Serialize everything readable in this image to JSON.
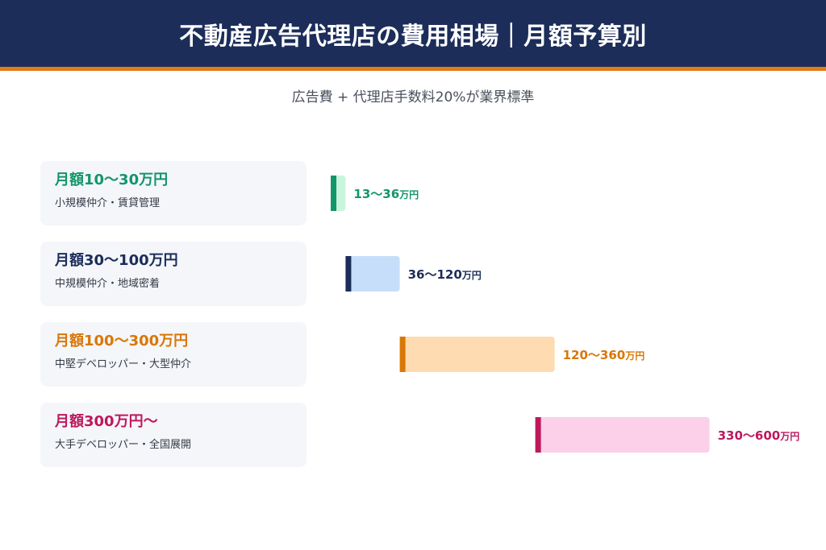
{
  "header": {
    "title": "不動産広告代理店の費用相場｜月額予算別"
  },
  "subtitle": "広告費 + 代理店手数料20%が業界標準",
  "tiers": [
    {
      "title": "月額10〜30万円",
      "description": "小規模仲介・賃貸管理",
      "value_text": "13〜36",
      "unit": "万円"
    },
    {
      "title": "月額30〜100万円",
      "description": "中規模仲介・地域密着",
      "value_text": "36〜120",
      "unit": "万円"
    },
    {
      "title": "月額100〜300万円",
      "description": "中堅デベロッパー・大型仲介",
      "value_text": "120〜360",
      "unit": "万円"
    },
    {
      "title": "月額300万円〜",
      "description": "大手デベロッパー・全国展開",
      "value_text": "330〜600",
      "unit": "万円"
    }
  ],
  "colors": {
    "header_bg": "#1c2d5a",
    "header_accent": "#e07b1a",
    "tiers": [
      {
        "accent": "#139668",
        "fill": "#c9f5dc"
      },
      {
        "accent": "#1c2d5a",
        "fill": "#c7defb"
      },
      {
        "accent": "#d97706",
        "fill": "#fedbb0"
      },
      {
        "accent": "#be185d",
        "fill": "#fbd0e8"
      }
    ]
  },
  "chart_data": {
    "type": "bar",
    "orientation": "horizontal-range",
    "categories": [
      "月額10〜30万円",
      "月額30〜100万円",
      "月額100〜300万円",
      "月額300万円〜"
    ],
    "ranges": [
      [
        13,
        36
      ],
      [
        36,
        120
      ],
      [
        120,
        360
      ],
      [
        330,
        600
      ]
    ],
    "unit": "万円",
    "grid": false,
    "legend": "none"
  }
}
